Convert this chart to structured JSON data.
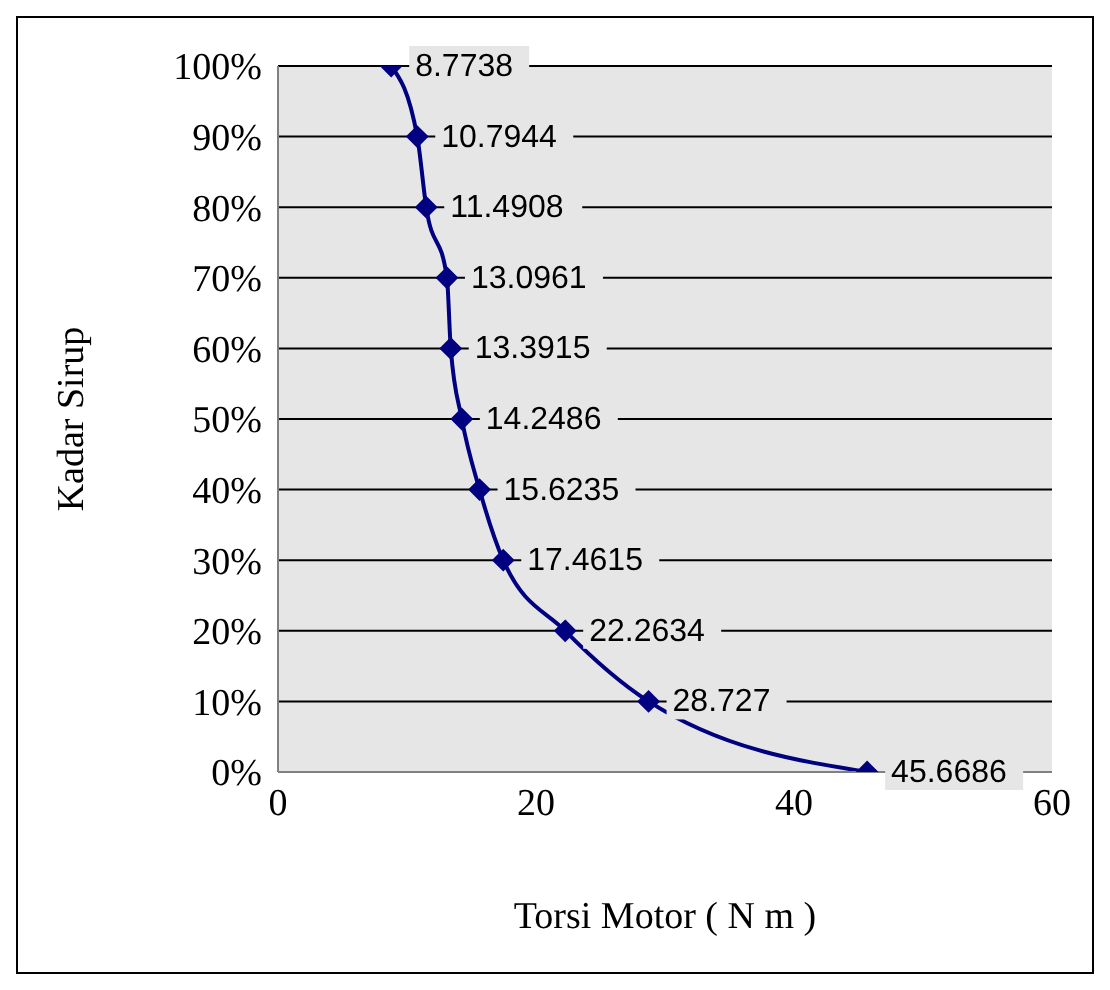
{
  "chart_data": {
    "type": "line",
    "xlabel": "Torsi Motor ( N m )",
    "ylabel": "Kadar Sirup",
    "series": [
      {
        "color": "#000080",
        "x": [
          8.7738,
          10.7944,
          11.4908,
          13.0961,
          13.3915,
          14.2486,
          15.6235,
          17.4615,
          22.2634,
          28.727,
          45.6686
        ],
        "values": [
          100,
          90,
          80,
          70,
          60,
          50,
          40,
          30,
          20,
          10,
          0
        ],
        "name": null
      }
    ],
    "annotations": [
      {
        "text": "8.7738",
        "x": 8.7738,
        "y": 100
      },
      {
        "text": "10.7944",
        "x": 10.7944,
        "y": 90
      },
      {
        "text": "11.4908",
        "x": 11.4908,
        "y": 80
      },
      {
        "text": "13.0961",
        "x": 13.0961,
        "y": 70
      },
      {
        "text": "13.3915",
        "x": 13.3915,
        "y": 60
      },
      {
        "text": "14.2486",
        "x": 14.2486,
        "y": 50
      },
      {
        "text": "15.6235",
        "x": 15.6235,
        "y": 40
      },
      {
        "text": "17.4615",
        "x": 17.4615,
        "y": 30
      },
      {
        "text": "22.2634",
        "x": 22.2634,
        "y": 20
      },
      {
        "text": "28.727",
        "x": 28.727,
        "y": 10
      },
      {
        "text": "45.6686",
        "x": 45.6686,
        "y": 0
      }
    ],
    "xlim": [
      0,
      60
    ],
    "xticks": [
      0,
      20,
      40,
      60
    ],
    "ylim": [
      0,
      100
    ],
    "yticks": [
      {
        "value": 0,
        "label": "0%"
      },
      {
        "value": 10,
        "label": "10%"
      },
      {
        "value": 20,
        "label": "20%"
      },
      {
        "value": 30,
        "label": "30%"
      },
      {
        "value": 40,
        "label": "40%"
      },
      {
        "value": 50,
        "label": "50%"
      },
      {
        "value": 60,
        "label": "60%"
      },
      {
        "value": 70,
        "label": "70%"
      },
      {
        "value": 80,
        "label": "80%"
      },
      {
        "value": 90,
        "label": "90%"
      },
      {
        "value": 100,
        "label": "100%"
      }
    ],
    "grid": "y",
    "marker": "diamond",
    "line_style": "solid",
    "legend": false
  }
}
